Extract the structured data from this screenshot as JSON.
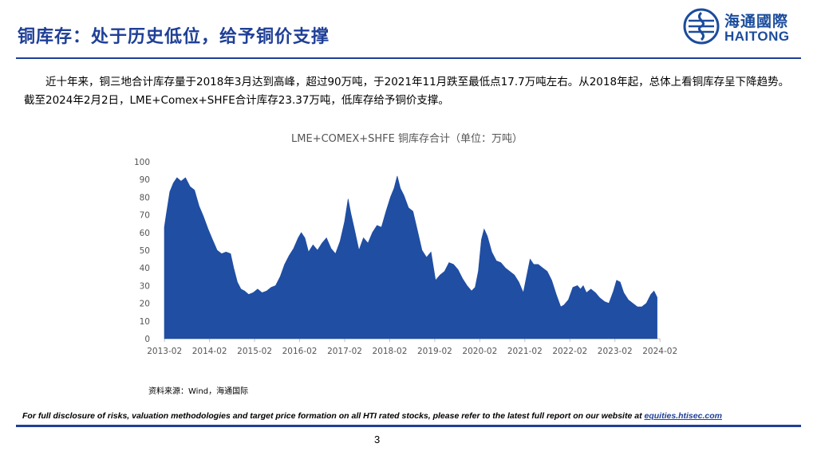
{
  "header": {
    "title": "铜库存：处于历史低位，给予铜价支撑",
    "logo_cn": "海通國際",
    "logo_en": "HAITONG"
  },
  "body_text": "近十年来，铜三地合计库存量于2018年3月达到高峰，超过90万吨，于2021年11月跌至最低点17.7万吨左右。从2018年起，总体上看铜库存呈下降趋势。截至2024年2月2日，LME+Comex+SHFE合计库存23.37万吨，低库存给予铜价支撑。",
  "chart_data": {
    "type": "area",
    "title": "LME+COMEX+SHFE 铜库存合计（单位：万吨）",
    "xlabel": "",
    "ylabel": "",
    "ylim": [
      0,
      100
    ],
    "yticks": [
      "0",
      "10",
      "20",
      "30",
      "40",
      "50",
      "60",
      "70",
      "80",
      "90",
      "100"
    ],
    "xticks": [
      "2013-02",
      "2014-02",
      "2015-02",
      "2016-02",
      "2017-02",
      "2018-02",
      "2019-02",
      "2020-02",
      "2021-02",
      "2022-02",
      "2023-02",
      "2024-02"
    ],
    "fill_color": "#1f4ea3",
    "grid": false,
    "legend": "none",
    "points": [
      [
        2013.08,
        63
      ],
      [
        2013.12,
        70
      ],
      [
        2013.2,
        83
      ],
      [
        2013.28,
        88
      ],
      [
        2013.36,
        91
      ],
      [
        2013.45,
        89
      ],
      [
        2013.55,
        91
      ],
      [
        2013.65,
        86
      ],
      [
        2013.75,
        84
      ],
      [
        2013.85,
        75
      ],
      [
        2013.95,
        69
      ],
      [
        2014.05,
        62
      ],
      [
        2014.15,
        56
      ],
      [
        2014.25,
        50
      ],
      [
        2014.35,
        48
      ],
      [
        2014.45,
        49
      ],
      [
        2014.55,
        48
      ],
      [
        2014.62,
        40
      ],
      [
        2014.7,
        32
      ],
      [
        2014.78,
        28
      ],
      [
        2014.86,
        27
      ],
      [
        2014.95,
        25
      ],
      [
        2015.05,
        26
      ],
      [
        2015.15,
        28
      ],
      [
        2015.25,
        26
      ],
      [
        2015.35,
        27
      ],
      [
        2015.45,
        29
      ],
      [
        2015.55,
        30
      ],
      [
        2015.65,
        35
      ],
      [
        2015.75,
        42
      ],
      [
        2015.85,
        47
      ],
      [
        2015.95,
        51
      ],
      [
        2016.05,
        57
      ],
      [
        2016.12,
        60
      ],
      [
        2016.2,
        57
      ],
      [
        2016.28,
        49
      ],
      [
        2016.38,
        53
      ],
      [
        2016.48,
        50
      ],
      [
        2016.58,
        54
      ],
      [
        2016.68,
        57
      ],
      [
        2016.78,
        51
      ],
      [
        2016.88,
        48
      ],
      [
        2016.98,
        55
      ],
      [
        2017.08,
        66
      ],
      [
        2017.16,
        79
      ],
      [
        2017.22,
        71
      ],
      [
        2017.3,
        62
      ],
      [
        2017.4,
        50
      ],
      [
        2017.5,
        57
      ],
      [
        2017.6,
        54
      ],
      [
        2017.7,
        60
      ],
      [
        2017.8,
        64
      ],
      [
        2017.9,
        63
      ],
      [
        2018.0,
        72
      ],
      [
        2018.1,
        80
      ],
      [
        2018.18,
        85
      ],
      [
        2018.25,
        92
      ],
      [
        2018.32,
        85
      ],
      [
        2018.4,
        81
      ],
      [
        2018.5,
        74
      ],
      [
        2018.6,
        72
      ],
      [
        2018.7,
        61
      ],
      [
        2018.8,
        50
      ],
      [
        2018.9,
        46
      ],
      [
        2019.0,
        49
      ],
      [
        2019.1,
        33
      ],
      [
        2019.2,
        36
      ],
      [
        2019.3,
        38
      ],
      [
        2019.4,
        43
      ],
      [
        2019.5,
        42
      ],
      [
        2019.6,
        39
      ],
      [
        2019.7,
        34
      ],
      [
        2019.8,
        30
      ],
      [
        2019.9,
        27
      ],
      [
        2019.98,
        29
      ],
      [
        2020.05,
        38
      ],
      [
        2020.12,
        56
      ],
      [
        2020.18,
        62
      ],
      [
        2020.25,
        58
      ],
      [
        2020.35,
        49
      ],
      [
        2020.45,
        44
      ],
      [
        2020.55,
        43
      ],
      [
        2020.65,
        40
      ],
      [
        2020.75,
        38
      ],
      [
        2020.85,
        36
      ],
      [
        2020.95,
        32
      ],
      [
        2021.05,
        26
      ],
      [
        2021.12,
        35
      ],
      [
        2021.2,
        45
      ],
      [
        2021.28,
        42
      ],
      [
        2021.38,
        42
      ],
      [
        2021.48,
        40
      ],
      [
        2021.58,
        38
      ],
      [
        2021.68,
        33
      ],
      [
        2021.78,
        25
      ],
      [
        2021.88,
        18
      ],
      [
        2021.95,
        19
      ],
      [
        2022.05,
        22
      ],
      [
        2022.15,
        29
      ],
      [
        2022.25,
        30
      ],
      [
        2022.32,
        28
      ],
      [
        2022.38,
        30
      ],
      [
        2022.45,
        26
      ],
      [
        2022.55,
        28
      ],
      [
        2022.65,
        26
      ],
      [
        2022.75,
        23
      ],
      [
        2022.85,
        21
      ],
      [
        2022.95,
        20
      ],
      [
        2023.05,
        27
      ],
      [
        2023.12,
        33
      ],
      [
        2023.2,
        32
      ],
      [
        2023.28,
        26
      ],
      [
        2023.38,
        22
      ],
      [
        2023.48,
        20
      ],
      [
        2023.58,
        18
      ],
      [
        2023.68,
        18
      ],
      [
        2023.78,
        20
      ],
      [
        2023.88,
        25
      ],
      [
        2023.95,
        27
      ],
      [
        2024.02,
        23.4
      ]
    ]
  },
  "source": "资料来源：Wind，海通国际",
  "footer": {
    "disclaimer": "For full disclosure of risks, valuation methodologies and target price formation on all HTI rated stocks, please refer to the latest full report on our website at",
    "link": "equities.htisec.com",
    "page_number": "3"
  }
}
